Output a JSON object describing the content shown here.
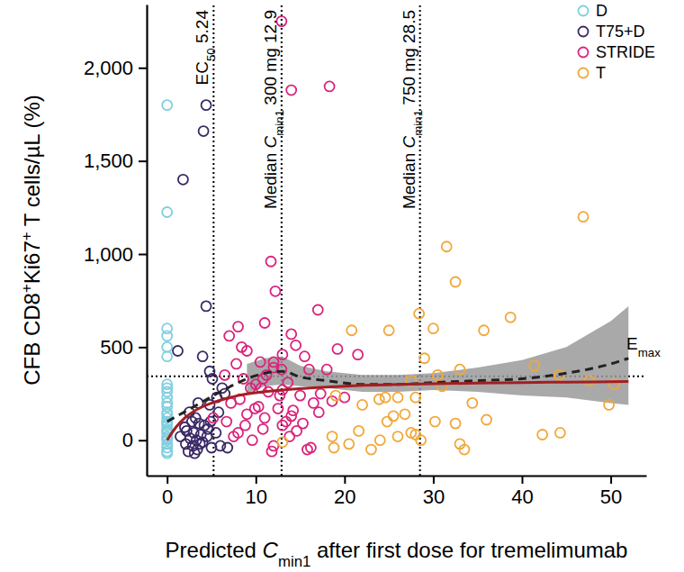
{
  "chart_data": {
    "type": "scatter",
    "xlabel_parts": [
      {
        "text": "Predicted "
      },
      {
        "text": "C",
        "style": "italic"
      },
      {
        "text": "min1",
        "style": "sub"
      },
      {
        "text": " after first dose for tremelimumab"
      }
    ],
    "ylabel_parts": [
      {
        "text": "CFB CD8"
      },
      {
        "text": "+",
        "style": "sup"
      },
      {
        "text": "Ki67"
      },
      {
        "text": "+",
        "style": "sup"
      },
      {
        "text": " T cells/µL (%)"
      }
    ],
    "xlim": [
      -2.3,
      54
    ],
    "ylim": [
      -190,
      2340
    ],
    "xticks": [
      0,
      10,
      20,
      30,
      40,
      50
    ],
    "yticks": [
      0,
      500,
      {
        "value": 1000,
        "label": "1,000"
      },
      {
        "value": 1500,
        "label": "1,500"
      },
      {
        "value": 2000,
        "label": "2,000"
      }
    ],
    "grid": false,
    "legend": "top-right",
    "marker": "circle-open",
    "series": [
      {
        "name": "D",
        "color": "#7fcfe0",
        "x": [
          0,
          0,
          0,
          0,
          0,
          0,
          0,
          0,
          0,
          0,
          0,
          0,
          0,
          0,
          0,
          0,
          0,
          0,
          0,
          0,
          0,
          0,
          0,
          0,
          0,
          0,
          0,
          0
        ],
        "values": [
          1800,
          1225,
          600,
          560,
          500,
          450,
          300,
          280,
          260,
          230,
          200,
          180,
          150,
          120,
          100,
          80,
          60,
          40,
          20,
          0,
          -20,
          -40,
          -60,
          -70,
          10,
          50,
          90,
          140
        ]
      },
      {
        "name": "T75+D",
        "color": "#3a2866",
        "x": [
          4.4,
          4.1,
          1.8,
          4.4,
          1.2,
          4.0,
          4.8,
          5.1,
          6.2,
          5.6,
          6.5,
          3.5,
          4.8,
          2.5,
          3.2,
          2.8,
          3.6,
          4.2,
          2.0,
          2.2,
          3.0,
          3.8,
          4.5,
          2.6,
          3.3,
          4.0,
          2.9,
          3.4,
          2.4,
          5.0,
          6.0,
          5.5,
          4.6,
          1.5,
          3.1,
          3.7,
          2.1,
          4.9,
          5.8,
          6.8
        ],
        "values": [
          1800,
          1660,
          1400,
          720,
          480,
          450,
          370,
          330,
          280,
          230,
          250,
          200,
          190,
          150,
          120,
          100,
          90,
          80,
          70,
          50,
          40,
          30,
          20,
          10,
          0,
          -10,
          -30,
          -50,
          -60,
          -40,
          -30,
          40,
          60,
          20,
          -70,
          -20,
          -20,
          100,
          150,
          -40
        ]
      },
      {
        "name": "STRIDE",
        "color": "#d9247c",
        "x": [
          12.9,
          14,
          18.3,
          11.7,
          12.2,
          8,
          11,
          17,
          14,
          13,
          12,
          9,
          14.5,
          8.4,
          19.2,
          21.5,
          15.5,
          10.5,
          7.8,
          12,
          16,
          6.5,
          8.6,
          10,
          13.6,
          9.4,
          11.4,
          15,
          17.3,
          8.2,
          7.2,
          10.3,
          12.5,
          14.2,
          16.5,
          18.6,
          9,
          11,
          13.4,
          8.8,
          10.8,
          14.6,
          7.5,
          9.6,
          12,
          15.8,
          16.2,
          11.8,
          6.7,
          5.2,
          14,
          13,
          9.9,
          10.6,
          18,
          12.7,
          13.8,
          15.3,
          11.2,
          7,
          10.8,
          13,
          20,
          8,
          17.1,
          12.9
        ],
        "values": [
          2250,
          1880,
          1900,
          960,
          800,
          610,
          630,
          700,
          570,
          460,
          420,
          480,
          510,
          500,
          490,
          460,
          450,
          420,
          410,
          390,
          380,
          350,
          330,
          300,
          310,
          280,
          260,
          240,
          250,
          220,
          200,
          180,
          170,
          160,
          200,
          210,
          140,
          120,
          100,
          80,
          60,
          50,
          20,
          0,
          -30,
          -50,
          -40,
          -60,
          100,
          120,
          130,
          80,
          170,
          280,
          380,
          240,
          20,
          90,
          350,
          560,
          330,
          270,
          230,
          40,
          150,
          380
        ]
      },
      {
        "name": "T",
        "color": "#f2a737",
        "x": [
          46.9,
          31.5,
          32.5,
          38.7,
          28.4,
          30,
          25,
          20.8,
          35.7,
          29,
          33,
          30.5,
          41.4,
          47.6,
          44.2,
          50.4,
          49.8,
          27.5,
          31,
          23.9,
          24.6,
          26,
          28,
          19,
          22,
          25.5,
          24.8,
          26.8,
          27.5,
          28,
          30.2,
          32.5,
          36,
          34.4,
          20.5,
          18.8,
          23,
          24,
          26,
          28.6,
          33,
          33.5,
          42.3,
          44.3,
          13,
          21.6,
          18.6
        ],
        "values": [
          1200,
          1040,
          850,
          660,
          680,
          600,
          590,
          590,
          590,
          440,
          380,
          350,
          400,
          320,
          350,
          300,
          190,
          320,
          290,
          220,
          230,
          230,
          230,
          240,
          190,
          130,
          100,
          140,
          40,
          30,
          100,
          90,
          110,
          200,
          -20,
          -40,
          -50,
          0,
          20,
          0,
          -20,
          -50,
          30,
          40,
          -10,
          50,
          20
        ]
      }
    ],
    "band": {
      "color": "#9a9a9a",
      "x": [
        9,
        11,
        13,
        15,
        18,
        22,
        26,
        30,
        35,
        40,
        45,
        50,
        52
      ],
      "lower": [
        250,
        290,
        300,
        290,
        280,
        260,
        260,
        270,
        260,
        240,
        230,
        200,
        190
      ],
      "upper": [
        410,
        440,
        450,
        400,
        370,
        350,
        350,
        360,
        390,
        430,
        500,
        640,
        720
      ]
    },
    "lines": [
      {
        "type": "line",
        "color": "#222222",
        "line_style": "dashed",
        "x": [
          0,
          3,
          6,
          9,
          11,
          13,
          15,
          18,
          22,
          26,
          30,
          35,
          40,
          45,
          50,
          52
        ],
        "values": [
          100,
          180,
          260,
          330,
          360,
          370,
          340,
          320,
          300,
          300,
          310,
          320,
          330,
          360,
          410,
          440
        ]
      },
      {
        "type": "line",
        "color": "#a31e22",
        "line_style": "solid",
        "x": [
          0,
          1,
          2,
          3,
          4,
          6,
          8,
          10,
          13,
          16,
          20,
          25,
          30,
          35,
          40,
          45,
          52
        ],
        "values": [
          0,
          70,
          120,
          155,
          180,
          215,
          240,
          255,
          270,
          280,
          290,
          298,
          303,
          307,
          310,
          312,
          315
        ]
      }
    ],
    "annotations": [
      {
        "type": "vline",
        "x": 5.24,
        "line_style": "dotted",
        "parts": [
          {
            "text": "EC"
          },
          {
            "text": "50",
            "style": "sub"
          },
          {
            "text": " 5.24"
          }
        ]
      },
      {
        "type": "vline",
        "x": 12.9,
        "line_style": "dotted",
        "parts": [
          {
            "text": "Median "
          },
          {
            "text": "C",
            "style": "italic"
          },
          {
            "text": "min1",
            "style": "sub"
          },
          {
            "text": " 300 mg 12.9"
          }
        ]
      },
      {
        "type": "vline",
        "x": 28.5,
        "line_style": "dotted",
        "parts": [
          {
            "text": "Median "
          },
          {
            "text": "C",
            "style": "italic"
          },
          {
            "text": "min1",
            "style": "sub"
          },
          {
            "text": " 750 mg 28.5"
          }
        ]
      },
      {
        "type": "hline",
        "y": 343,
        "line_style": "dotted",
        "parts": [
          {
            "text": "E"
          },
          {
            "text": "max",
            "style": "sub"
          }
        ]
      }
    ]
  }
}
